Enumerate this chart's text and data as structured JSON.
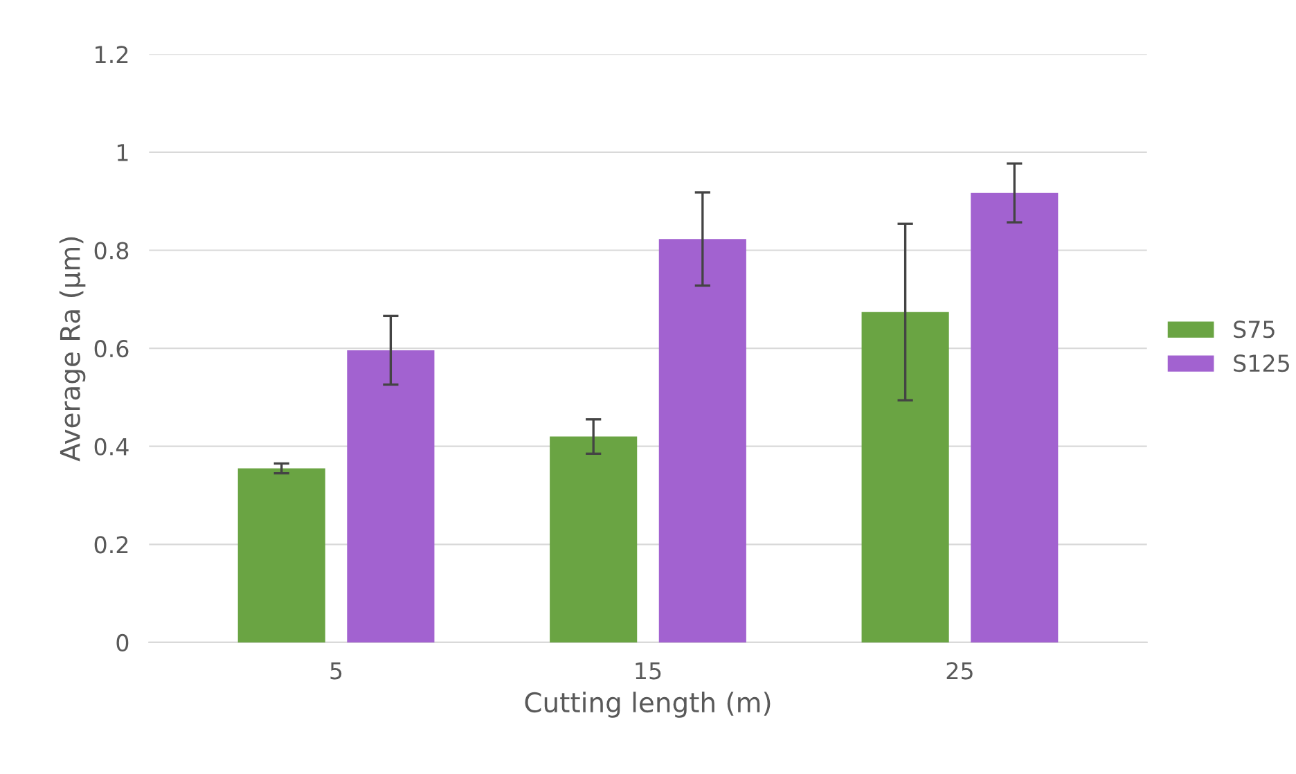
{
  "chart_data": {
    "type": "bar",
    "xlabel": "Cutting length (m)",
    "ylabel": "Average Ra (µm)",
    "categories": [
      "5",
      "15",
      "25"
    ],
    "series": [
      {
        "name": "S75",
        "color": "#6aa443",
        "values": [
          0.355,
          0.42,
          0.674
        ],
        "errors": [
          0.01,
          0.035,
          0.18
        ]
      },
      {
        "name": "S125",
        "color": "#a262d0",
        "values": [
          0.596,
          0.823,
          0.917
        ],
        "errors": [
          0.07,
          0.095,
          0.06
        ]
      }
    ],
    "ylim": [
      0,
      1.2
    ],
    "yticks": [
      0,
      0.2,
      0.4,
      0.6,
      0.8,
      1,
      1.2
    ],
    "grid": "y",
    "legend": "right"
  }
}
